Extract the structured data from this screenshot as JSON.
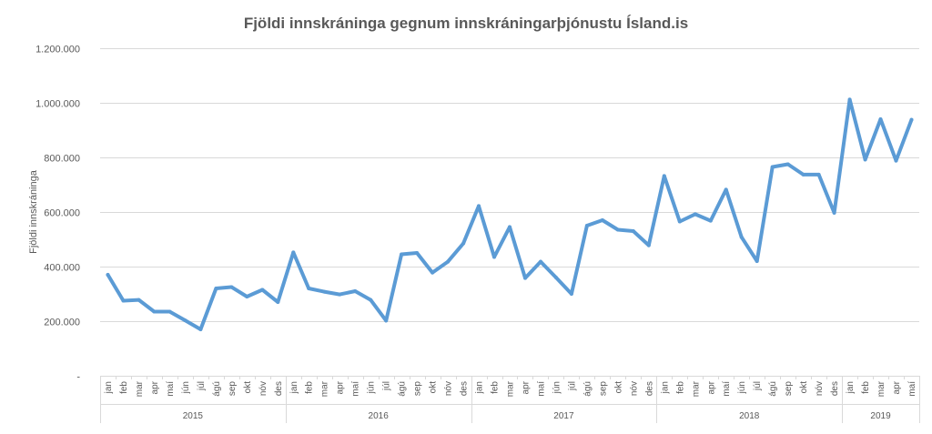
{
  "chart_data": {
    "type": "line",
    "title": "Fjöldi innskráninga  gegnum innskráningarþjónustu  Ísland.is",
    "ylabel": "Fjöldi innskráninga",
    "xlabel": "",
    "ylim": [
      0,
      1200000
    ],
    "yticks": [
      {
        "value": 0,
        "label": "-"
      },
      {
        "value": 200000,
        "label": "200.000"
      },
      {
        "value": 400000,
        "label": "400.000"
      },
      {
        "value": 600000,
        "label": "600.000"
      },
      {
        "value": 800000,
        "label": "800.000"
      },
      {
        "value": 1000000,
        "label": "1.000.000"
      },
      {
        "value": 1200000,
        "label": "1.200.000"
      }
    ],
    "grid": true,
    "legend": "none",
    "line_color": "#5b9bd5",
    "months": [
      "jan",
      "feb",
      "mar",
      "apr",
      "maí",
      "jún",
      "júl",
      "ágú",
      "sep",
      "okt",
      "nóv",
      "des"
    ],
    "years": [
      {
        "label": "2015",
        "count": 12
      },
      {
        "label": "2016",
        "count": 12
      },
      {
        "label": "2017",
        "count": 12
      },
      {
        "label": "2018",
        "count": 12
      },
      {
        "label": "2019",
        "count": 5
      }
    ],
    "series": [
      {
        "values": [
          370000,
          275000,
          278000,
          235000,
          235000,
          203000,
          170000,
          320000,
          325000,
          290000,
          315000,
          270000,
          452000,
          320000,
          308000,
          298000,
          310000,
          278000,
          202000,
          445000,
          450000,
          378000,
          418000,
          485000,
          622000,
          435000,
          545000,
          358000,
          418000,
          360000,
          300000,
          550000,
          570000,
          535000,
          530000,
          478000,
          732000,
          565000,
          592000,
          568000,
          682000,
          508000,
          420000,
          765000,
          775000,
          737000,
          737000,
          597000,
          1012000,
          792000,
          940000,
          788000,
          938000
        ]
      }
    ]
  }
}
